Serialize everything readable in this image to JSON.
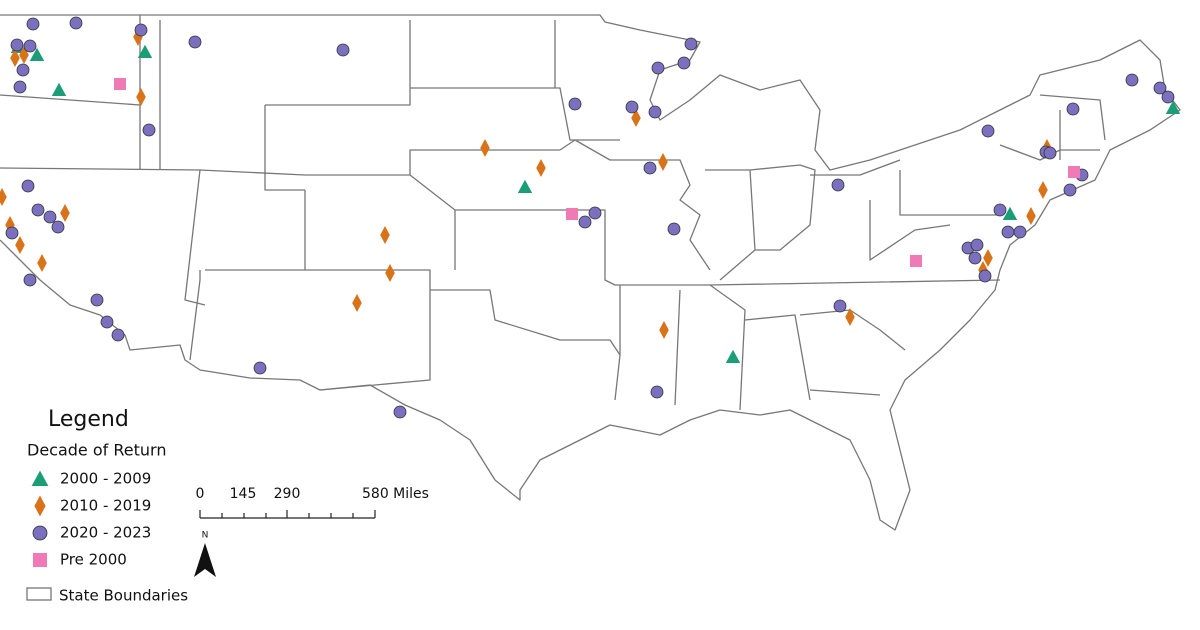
{
  "legend": {
    "title": "Legend",
    "subtitle": "Decade of Return",
    "items": [
      {
        "label": "2000 - 2009",
        "shape": "triangle",
        "color": "#1b9e77"
      },
      {
        "label": "2010 - 2019",
        "shape": "diamond",
        "color": "#d9731a"
      },
      {
        "label": "2020 - 2023",
        "shape": "circle",
        "color": "#7b6fbf"
      },
      {
        "label": "Pre 2000",
        "shape": "square",
        "color": "#f07ab5"
      }
    ],
    "boundary_label": "State Boundaries"
  },
  "scale_bar": {
    "labels": [
      "0",
      "145",
      "290",
      "580 Miles"
    ]
  },
  "north_arrow": "N"
}
